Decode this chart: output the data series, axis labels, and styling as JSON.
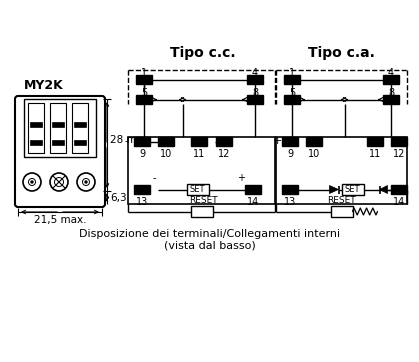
{
  "bg_color": "#ffffff",
  "title_cc": "Tipo c.c.",
  "title_ca": "Tipo c.a.",
  "label_my2k": "MY2K",
  "dim_28": "28 max.",
  "dim_63": "6,3",
  "dim_215": "21,5 max.",
  "bottom_text1": "Disposizione dei terminali/Collegamenti interni",
  "bottom_text2": "(vista dal basso)",
  "set_label": "SET",
  "reset_label": "RESET"
}
